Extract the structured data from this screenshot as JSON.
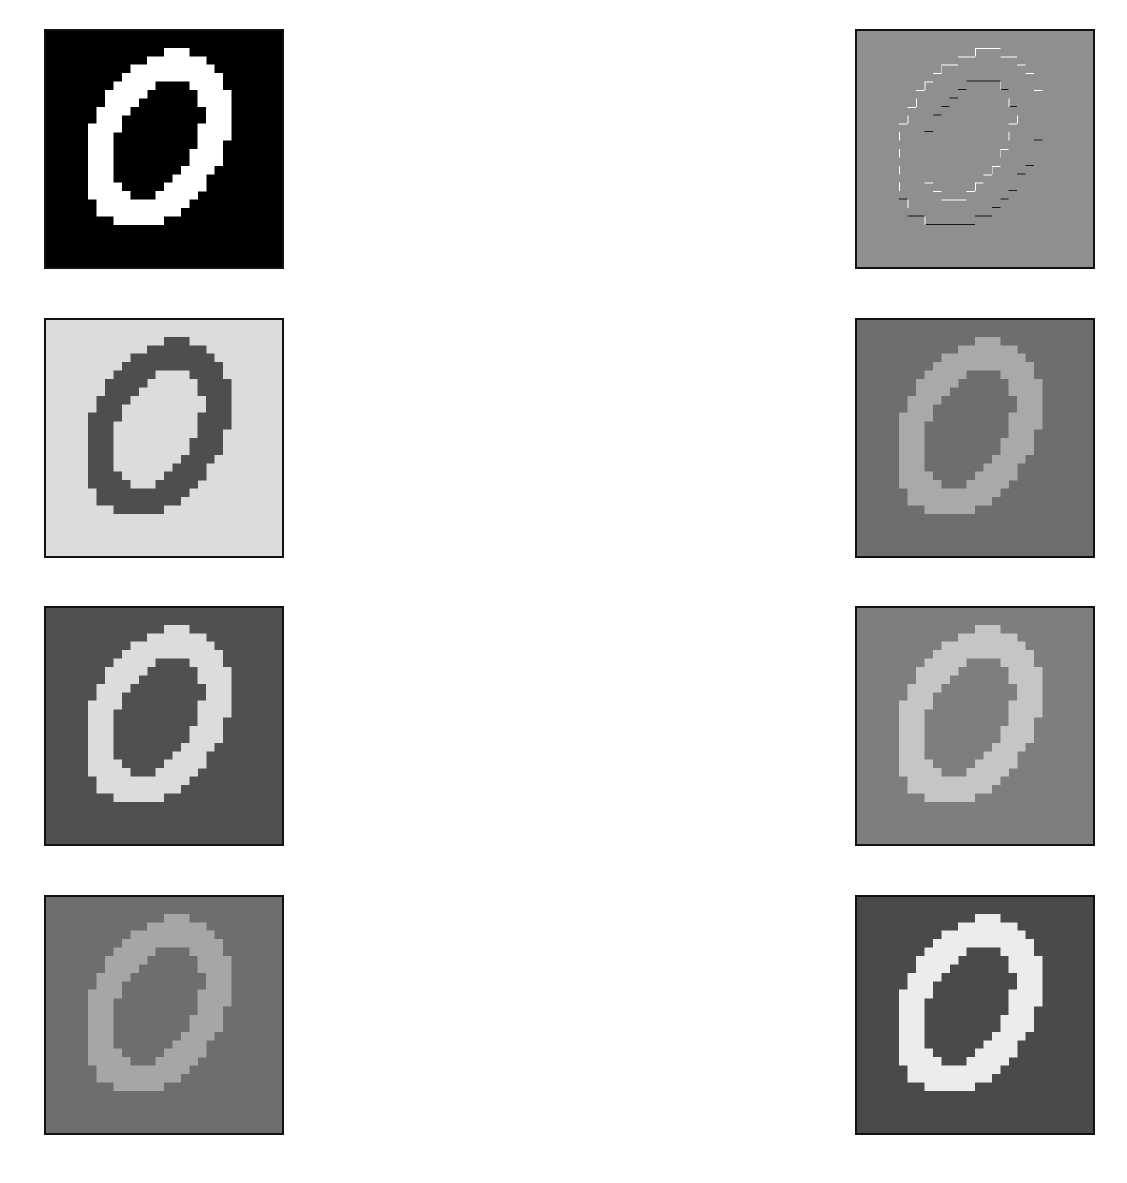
{
  "figure": {
    "panels": [
      {
        "id": "p0",
        "kind": "digit",
        "background": "#000000",
        "stroke": "#ffffff",
        "inner": "#000000"
      },
      {
        "id": "p1",
        "kind": "edges",
        "background": "#8f8f8f",
        "stroke": "#ffffff",
        "inner": "#8f8f8f"
      },
      {
        "id": "p2",
        "kind": "digit",
        "background": "#dcdcdc",
        "stroke": "#4e4e4e",
        "inner": "#dcdcdc"
      },
      {
        "id": "p3",
        "kind": "digit",
        "background": "#6e6e6e",
        "stroke": "#a9a9a9",
        "inner": "#6e6e6e"
      },
      {
        "id": "p4",
        "kind": "digit",
        "background": "#505050",
        "stroke": "#dcdcdc",
        "inner": "#505050"
      },
      {
        "id": "p5",
        "kind": "digit",
        "background": "#7e7e7e",
        "stroke": "#c5c5c5",
        "inner": "#7e7e7e"
      },
      {
        "id": "p6",
        "kind": "digit",
        "background": "#6e6e6e",
        "stroke": "#a6a6a6",
        "inner": "#6e6e6e"
      },
      {
        "id": "p7",
        "kind": "digit",
        "background": "#4a4a4a",
        "stroke": "#ececec",
        "inner": "#4a4a4a"
      }
    ]
  }
}
